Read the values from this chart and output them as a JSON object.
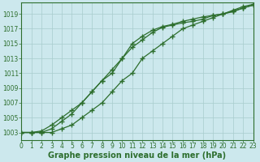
{
  "bg_color": "#cce8ed",
  "grid_color": "#a8cccc",
  "line_color": "#2d6e2d",
  "x_min": 0,
  "x_max": 23,
  "y_min": 1002,
  "y_max": 1020.5,
  "yticks": [
    1003,
    1005,
    1007,
    1009,
    1011,
    1013,
    1015,
    1017,
    1019
  ],
  "xticks": [
    0,
    1,
    2,
    3,
    4,
    5,
    6,
    7,
    8,
    9,
    10,
    11,
    12,
    13,
    14,
    15,
    16,
    17,
    18,
    19,
    20,
    21,
    22,
    23
  ],
  "line1": [
    1003,
    1003,
    1003.2,
    1004,
    1005,
    1006,
    1007,
    1008.5,
    1010,
    1011.5,
    1013,
    1014.5,
    1015.5,
    1016.5,
    1017.2,
    1017.5,
    1017.8,
    1018,
    1018.3,
    1018.8,
    1019,
    1019.3,
    1019.8,
    1020.2
  ],
  "line2": [
    1003,
    1003,
    1003,
    1003.5,
    1004.5,
    1005.5,
    1007,
    1008.5,
    1010,
    1011,
    1013,
    1015,
    1016,
    1016.8,
    1017.3,
    1017.6,
    1018,
    1018.3,
    1018.6,
    1018.8,
    1019,
    1019.4,
    1019.8,
    1020.2
  ],
  "line3": [
    1003,
    1003,
    1003,
    1003,
    1003.5,
    1004,
    1005,
    1006,
    1007,
    1008.5,
    1010,
    1011,
    1013,
    1014,
    1015,
    1016,
    1017,
    1017.5,
    1018,
    1018.5,
    1019,
    1019.5,
    1020,
    1020.3
  ],
  "xlabel": "Graphe pression niveau de la mer (hPa)",
  "tick_fontsize": 5.5,
  "xlabel_fontsize": 7
}
